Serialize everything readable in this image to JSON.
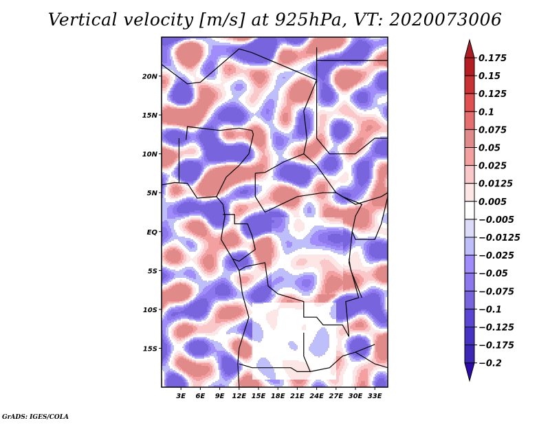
{
  "title": "Vertical velocity [m/s] at 925hPa, VT: 2020073006",
  "credit": "GrADS: IGES/COLA",
  "map": {
    "variable": "Vertical velocity",
    "units": "m/s",
    "level": "925hPa",
    "valid_time": "2020073006",
    "lon_range": [
      0,
      35
    ],
    "lat_range": [
      -20,
      25
    ],
    "lon_ticks": [
      {
        "value": 3,
        "label": "3E"
      },
      {
        "value": 6,
        "label": "6E"
      },
      {
        "value": 9,
        "label": "9E"
      },
      {
        "value": 12,
        "label": "12E"
      },
      {
        "value": 15,
        "label": "15E"
      },
      {
        "value": 18,
        "label": "18E"
      },
      {
        "value": 21,
        "label": "21E"
      },
      {
        "value": 24,
        "label": "24E"
      },
      {
        "value": 27,
        "label": "27E"
      },
      {
        "value": 30,
        "label": "30E"
      },
      {
        "value": 33,
        "label": "33E"
      }
    ],
    "lat_ticks": [
      {
        "value": 20,
        "label": "20N"
      },
      {
        "value": 15,
        "label": "15N"
      },
      {
        "value": 10,
        "label": "10N"
      },
      {
        "value": 5,
        "label": "5N"
      },
      {
        "value": 0,
        "label": "EQ"
      },
      {
        "value": -5,
        "label": "5S"
      },
      {
        "value": -10,
        "label": "10S"
      },
      {
        "value": -15,
        "label": "15S"
      }
    ]
  },
  "colorbar": {
    "levels": [
      {
        "label": "0.175",
        "color": "#b41e23"
      },
      {
        "label": "0.15",
        "color": "#c83232"
      },
      {
        "label": "0.125",
        "color": "#e05050"
      },
      {
        "label": "0.1",
        "color": "#e66e6e"
      },
      {
        "label": "0.075",
        "color": "#e08a8a"
      },
      {
        "label": "0.05",
        "color": "#f4a0a0"
      },
      {
        "label": "0.025",
        "color": "#fac8c8"
      },
      {
        "label": "0.0125",
        "color": "#fde6e6"
      },
      {
        "label": "0.005",
        "color": "#ffffff"
      },
      {
        "label": "-0.005",
        "color": "#dcdcfa"
      },
      {
        "label": "-0.0125",
        "color": "#bebefa"
      },
      {
        "label": "-0.025",
        "color": "#a08cfa"
      },
      {
        "label": "-0.05",
        "color": "#8c78ec"
      },
      {
        "label": "-0.075",
        "color": "#7864dc"
      },
      {
        "label": "-0.1",
        "color": "#5a46d2"
      },
      {
        "label": "-0.125",
        "color": "#4632c3"
      },
      {
        "label": "-0.175",
        "color": "#3c28b4"
      },
      {
        "label": "-0.2",
        "color": "#3219a0"
      }
    ],
    "top_arrow_color": "#aa1e23",
    "bottom_arrow_color": "#2d0aaa"
  }
}
